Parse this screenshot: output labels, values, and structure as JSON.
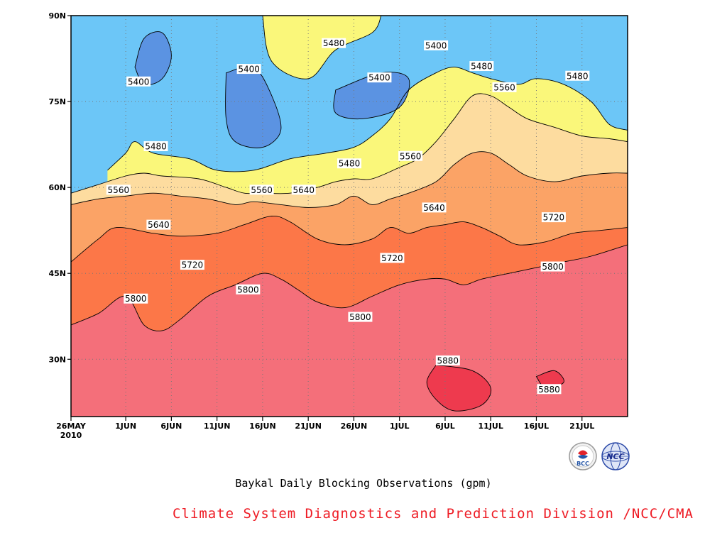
{
  "chart_data": {
    "type": "heatmap",
    "title": "Baykal Daily Blocking Observations (gpm)",
    "credit": "Climate System Diagnostics and Prediction Division /NCC/CMA",
    "x_axis": {
      "type": "date",
      "start": "2010-05-26",
      "end": "2010-07-26",
      "ticks": [
        {
          "date": "2010-05-26",
          "label": "26MAY",
          "sublabel": "2010"
        },
        {
          "date": "2010-06-01",
          "label": "1JUN"
        },
        {
          "date": "2010-06-06",
          "label": "6JUN"
        },
        {
          "date": "2010-06-11",
          "label": "11JUN"
        },
        {
          "date": "2010-06-16",
          "label": "16JUN"
        },
        {
          "date": "2010-06-21",
          "label": "21JUN"
        },
        {
          "date": "2010-06-26",
          "label": "26JUN"
        },
        {
          "date": "2010-07-01",
          "label": "1JUL"
        },
        {
          "date": "2010-07-06",
          "label": "6JUL"
        },
        {
          "date": "2010-07-11",
          "label": "11JUL"
        },
        {
          "date": "2010-07-16",
          "label": "16JUL"
        },
        {
          "date": "2010-07-21",
          "label": "21JUL"
        }
      ]
    },
    "y_axis": {
      "range": [
        20,
        90
      ],
      "ticks": [
        {
          "value": 90,
          "label": "90N"
        },
        {
          "value": 75,
          "label": "75N"
        },
        {
          "value": 60,
          "label": "60N"
        },
        {
          "value": 45,
          "label": "45N"
        },
        {
          "value": 30,
          "label": "30N"
        }
      ]
    },
    "grid": true,
    "contour_levels": [
      5400,
      5480,
      5560,
      5640,
      5720,
      5800,
      5880
    ],
    "fill_colors": {
      "below_5400": "#5b93e2",
      "5400_5480": "#6cc6f7",
      "5480_5560": "#faf77a",
      "5560_5640": "#fddc9f",
      "5640_5720": "#fba366",
      "5720_5800": "#fc7748",
      "5800_5880": "#f46f7a",
      "above_5880": "#ee3a4e"
    },
    "contours": [
      {
        "level": 5560,
        "label": "5560",
        "points": [
          [
            0,
            59
          ],
          [
            3,
            60.5
          ],
          [
            6,
            62
          ],
          [
            8,
            62.5
          ],
          [
            10,
            62
          ],
          [
            14,
            61.5
          ],
          [
            17,
            60
          ],
          [
            19,
            59
          ],
          [
            21,
            59
          ],
          [
            24,
            59
          ],
          [
            27,
            60
          ],
          [
            29,
            61
          ],
          [
            31,
            61.5
          ],
          [
            33,
            61.5
          ],
          [
            36,
            63.5
          ],
          [
            38,
            65
          ],
          [
            40,
            68
          ],
          [
            42,
            72
          ],
          [
            44,
            76
          ],
          [
            46,
            76
          ],
          [
            48,
            74
          ],
          [
            50,
            72
          ],
          [
            53,
            70.5
          ],
          [
            56,
            69
          ],
          [
            59,
            68.5
          ],
          [
            61,
            68
          ]
        ]
      },
      {
        "level": 5640,
        "label": "5640",
        "points": [
          [
            0,
            57
          ],
          [
            3,
            58
          ],
          [
            6,
            58.5
          ],
          [
            9,
            59
          ],
          [
            12,
            58.5
          ],
          [
            15,
            58
          ],
          [
            18,
            57
          ],
          [
            20,
            57.5
          ],
          [
            23,
            57
          ],
          [
            26,
            56.5
          ],
          [
            29,
            57
          ],
          [
            31,
            58.5
          ],
          [
            33,
            57
          ],
          [
            35,
            58
          ],
          [
            37,
            59
          ],
          [
            40,
            61
          ],
          [
            42,
            64
          ],
          [
            44,
            66
          ],
          [
            46,
            66
          ],
          [
            48,
            64
          ],
          [
            50,
            62
          ],
          [
            53,
            61
          ],
          [
            56,
            62
          ],
          [
            59,
            62.5
          ],
          [
            61,
            62.5
          ]
        ]
      },
      {
        "level": 5720,
        "label": "5720",
        "points": [
          [
            0,
            47
          ],
          [
            3,
            51
          ],
          [
            5,
            53
          ],
          [
            9,
            52
          ],
          [
            12,
            51.5
          ],
          [
            16,
            52
          ],
          [
            19,
            53.5
          ],
          [
            22,
            55
          ],
          [
            24,
            54
          ],
          [
            27,
            51
          ],
          [
            30,
            50
          ],
          [
            33,
            51
          ],
          [
            35,
            53
          ],
          [
            37,
            52
          ],
          [
            39,
            53
          ],
          [
            41,
            53.5
          ],
          [
            43,
            54
          ],
          [
            45,
            53
          ],
          [
            47,
            51.5
          ],
          [
            49,
            50
          ],
          [
            52,
            50.5
          ],
          [
            55,
            52
          ],
          [
            58,
            52.5
          ],
          [
            61,
            53
          ]
        ]
      },
      {
        "level": 5800,
        "label": "5800",
        "points": [
          [
            0,
            36
          ],
          [
            3,
            38
          ],
          [
            6,
            41
          ],
          [
            8,
            36
          ],
          [
            10,
            35
          ],
          [
            12,
            37
          ],
          [
            15,
            41
          ],
          [
            18,
            43
          ],
          [
            21,
            45
          ],
          [
            23,
            44
          ],
          [
            25,
            42
          ],
          [
            27,
            40
          ],
          [
            30,
            39
          ],
          [
            33,
            41
          ],
          [
            36,
            43
          ],
          [
            39,
            44
          ],
          [
            41,
            44
          ],
          [
            43,
            43
          ],
          [
            45,
            44
          ],
          [
            48,
            45
          ],
          [
            51,
            46
          ],
          [
            54,
            47
          ],
          [
            57,
            48
          ],
          [
            61,
            50
          ]
        ]
      },
      {
        "level": 5880,
        "label": "5880",
        "points": [
          [
            40,
            29
          ],
          [
            44,
            28
          ],
          [
            46,
            25
          ],
          [
            45,
            22
          ],
          [
            42,
            21
          ],
          [
            40,
            23
          ],
          [
            39,
            26
          ],
          [
            40,
            29
          ]
        ]
      },
      {
        "level": 5880,
        "label": "5880",
        "points": [
          [
            51,
            27
          ],
          [
            53,
            28
          ],
          [
            54,
            26
          ],
          [
            52,
            25
          ],
          [
            51,
            27
          ]
        ]
      },
      {
        "level": 5400,
        "label": "5400",
        "points": [
          [
            7,
            81
          ],
          [
            8,
            86
          ],
          [
            10,
            87
          ],
          [
            11,
            83
          ],
          [
            10,
            79
          ],
          [
            8,
            78
          ],
          [
            7,
            81
          ]
        ]
      },
      {
        "level": 5400,
        "label": "5400",
        "points": [
          [
            17,
            80
          ],
          [
            20,
            81
          ],
          [
            22,
            76
          ],
          [
            23,
            70
          ],
          [
            21,
            67
          ],
          [
            18,
            68
          ],
          [
            17,
            72
          ],
          [
            17,
            80
          ]
        ]
      },
      {
        "level": 5400,
        "label": "5400",
        "points": [
          [
            29,
            77
          ],
          [
            34,
            80
          ],
          [
            37,
            79
          ],
          [
            36,
            74
          ],
          [
            32,
            72
          ],
          [
            29,
            73
          ],
          [
            29,
            77
          ]
        ]
      },
      {
        "level": 5480,
        "label": "5480",
        "points": [
          [
            21,
            90
          ],
          [
            22,
            82
          ],
          [
            26,
            79
          ],
          [
            29,
            84
          ],
          [
            33,
            87
          ],
          [
            34,
            90
          ]
        ]
      },
      {
        "level": 5480,
        "label": "5480",
        "points": [
          [
            4,
            63
          ],
          [
            6,
            66
          ],
          [
            7,
            68
          ],
          [
            9,
            66
          ],
          [
            13,
            65
          ],
          [
            16,
            63
          ],
          [
            20,
            63
          ],
          [
            24,
            65
          ],
          [
            28,
            66
          ],
          [
            31,
            67
          ],
          [
            33,
            69
          ],
          [
            35,
            72
          ],
          [
            37,
            77
          ],
          [
            40,
            80
          ],
          [
            42,
            81
          ],
          [
            44,
            80
          ],
          [
            46,
            79
          ],
          [
            49,
            78
          ],
          [
            51,
            79
          ],
          [
            54,
            78
          ],
          [
            57,
            75
          ],
          [
            59,
            71
          ],
          [
            61,
            70
          ]
        ]
      }
    ],
    "contour_labels": [
      {
        "text": "5400",
        "date_offset_days": 7.4,
        "lat": 78.5
      },
      {
        "text": "5400",
        "date_offset_days": 19.5,
        "lat": 80.7
      },
      {
        "text": "5400",
        "date_offset_days": 33.8,
        "lat": 79.2
      },
      {
        "text": "5400",
        "date_offset_days": 40,
        "lat": 84.8
      },
      {
        "text": "5480",
        "date_offset_days": 28.8,
        "lat": 85.2
      },
      {
        "text": "5480",
        "date_offset_days": 45,
        "lat": 81.2
      },
      {
        "text": "5480",
        "date_offset_days": 55.5,
        "lat": 79.5
      },
      {
        "text": "5480",
        "date_offset_days": 9.3,
        "lat": 67.2
      },
      {
        "text": "5480",
        "date_offset_days": 30.5,
        "lat": 64.2
      },
      {
        "text": "5560",
        "date_offset_days": 47.5,
        "lat": 77.5
      },
      {
        "text": "5560",
        "date_offset_days": 37.2,
        "lat": 65.5
      },
      {
        "text": "5560",
        "date_offset_days": 5.2,
        "lat": 59.6
      },
      {
        "text": "5560",
        "date_offset_days": 20.9,
        "lat": 59.6
      },
      {
        "text": "5640",
        "date_offset_days": 25.5,
        "lat": 59.6
      },
      {
        "text": "5640",
        "date_offset_days": 9.6,
        "lat": 53.5
      },
      {
        "text": "5640",
        "date_offset_days": 39.8,
        "lat": 56.5
      },
      {
        "text": "5720",
        "date_offset_days": 13.3,
        "lat": 46.5
      },
      {
        "text": "5720",
        "date_offset_days": 35.2,
        "lat": 47.7
      },
      {
        "text": "5720",
        "date_offset_days": 52.9,
        "lat": 54.8
      },
      {
        "text": "5800",
        "date_offset_days": 7.1,
        "lat": 40.6
      },
      {
        "text": "5800",
        "date_offset_days": 19.4,
        "lat": 42.2
      },
      {
        "text": "5800",
        "date_offset_days": 31.7,
        "lat": 37.4
      },
      {
        "text": "5800",
        "date_offset_days": 52.8,
        "lat": 46.2
      },
      {
        "text": "5880",
        "date_offset_days": 41.3,
        "lat": 29.8
      },
      {
        "text": "5880",
        "date_offset_days": 52.4,
        "lat": 24.8
      }
    ]
  },
  "footer": {
    "title": "Baykal Daily Blocking Observations (gpm)",
    "credit": "Climate System Diagnostics and Prediction Division /NCC/CMA",
    "credit_color": "#ee1b24",
    "logos": [
      {
        "name": "bcc-logo",
        "text": "BCC"
      },
      {
        "name": "ncc-logo",
        "text": "NCC"
      }
    ]
  }
}
